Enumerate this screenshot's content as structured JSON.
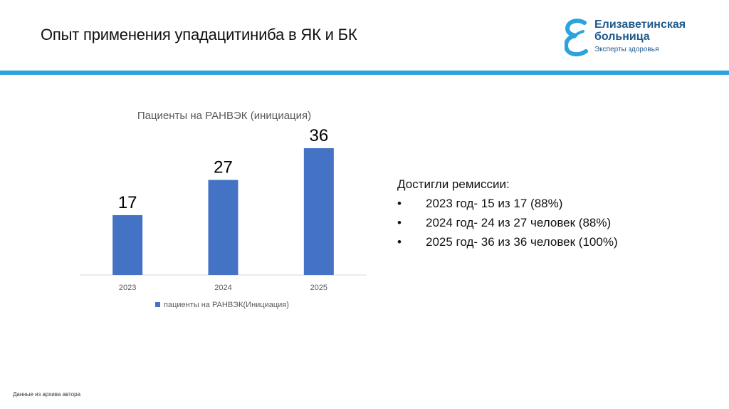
{
  "page": {
    "title": "Опыт применения упадацитиниба в ЯК и БК",
    "footnote": "Данные из архива автора"
  },
  "logo": {
    "line1": "Елизаветинская",
    "line2": "больница",
    "tagline": "Эксперты здоровья",
    "color": "#2ba3de"
  },
  "chart_data": {
    "type": "bar",
    "title": "Пациенты на РАНВЭК (инициация)",
    "categories": [
      "2023",
      "2024",
      "2025"
    ],
    "series": [
      {
        "name": "пациенты на РАНВЭК(Инициация)",
        "values": [
          17,
          27,
          36
        ],
        "color": "#4472c4"
      }
    ],
    "xlabel": "",
    "ylabel": "",
    "ylim": [
      0,
      36
    ],
    "grid": false,
    "legend": "bottom",
    "data_labels": true
  },
  "remission": {
    "heading": "Достигли ремиссии:",
    "items": [
      "2023 год- 15 из 17 (88%)",
      "2024 год- 24 из 27 человек (88%)",
      "2025 год- 36 из 36 человек (100%)"
    ],
    "bullet": "•"
  }
}
